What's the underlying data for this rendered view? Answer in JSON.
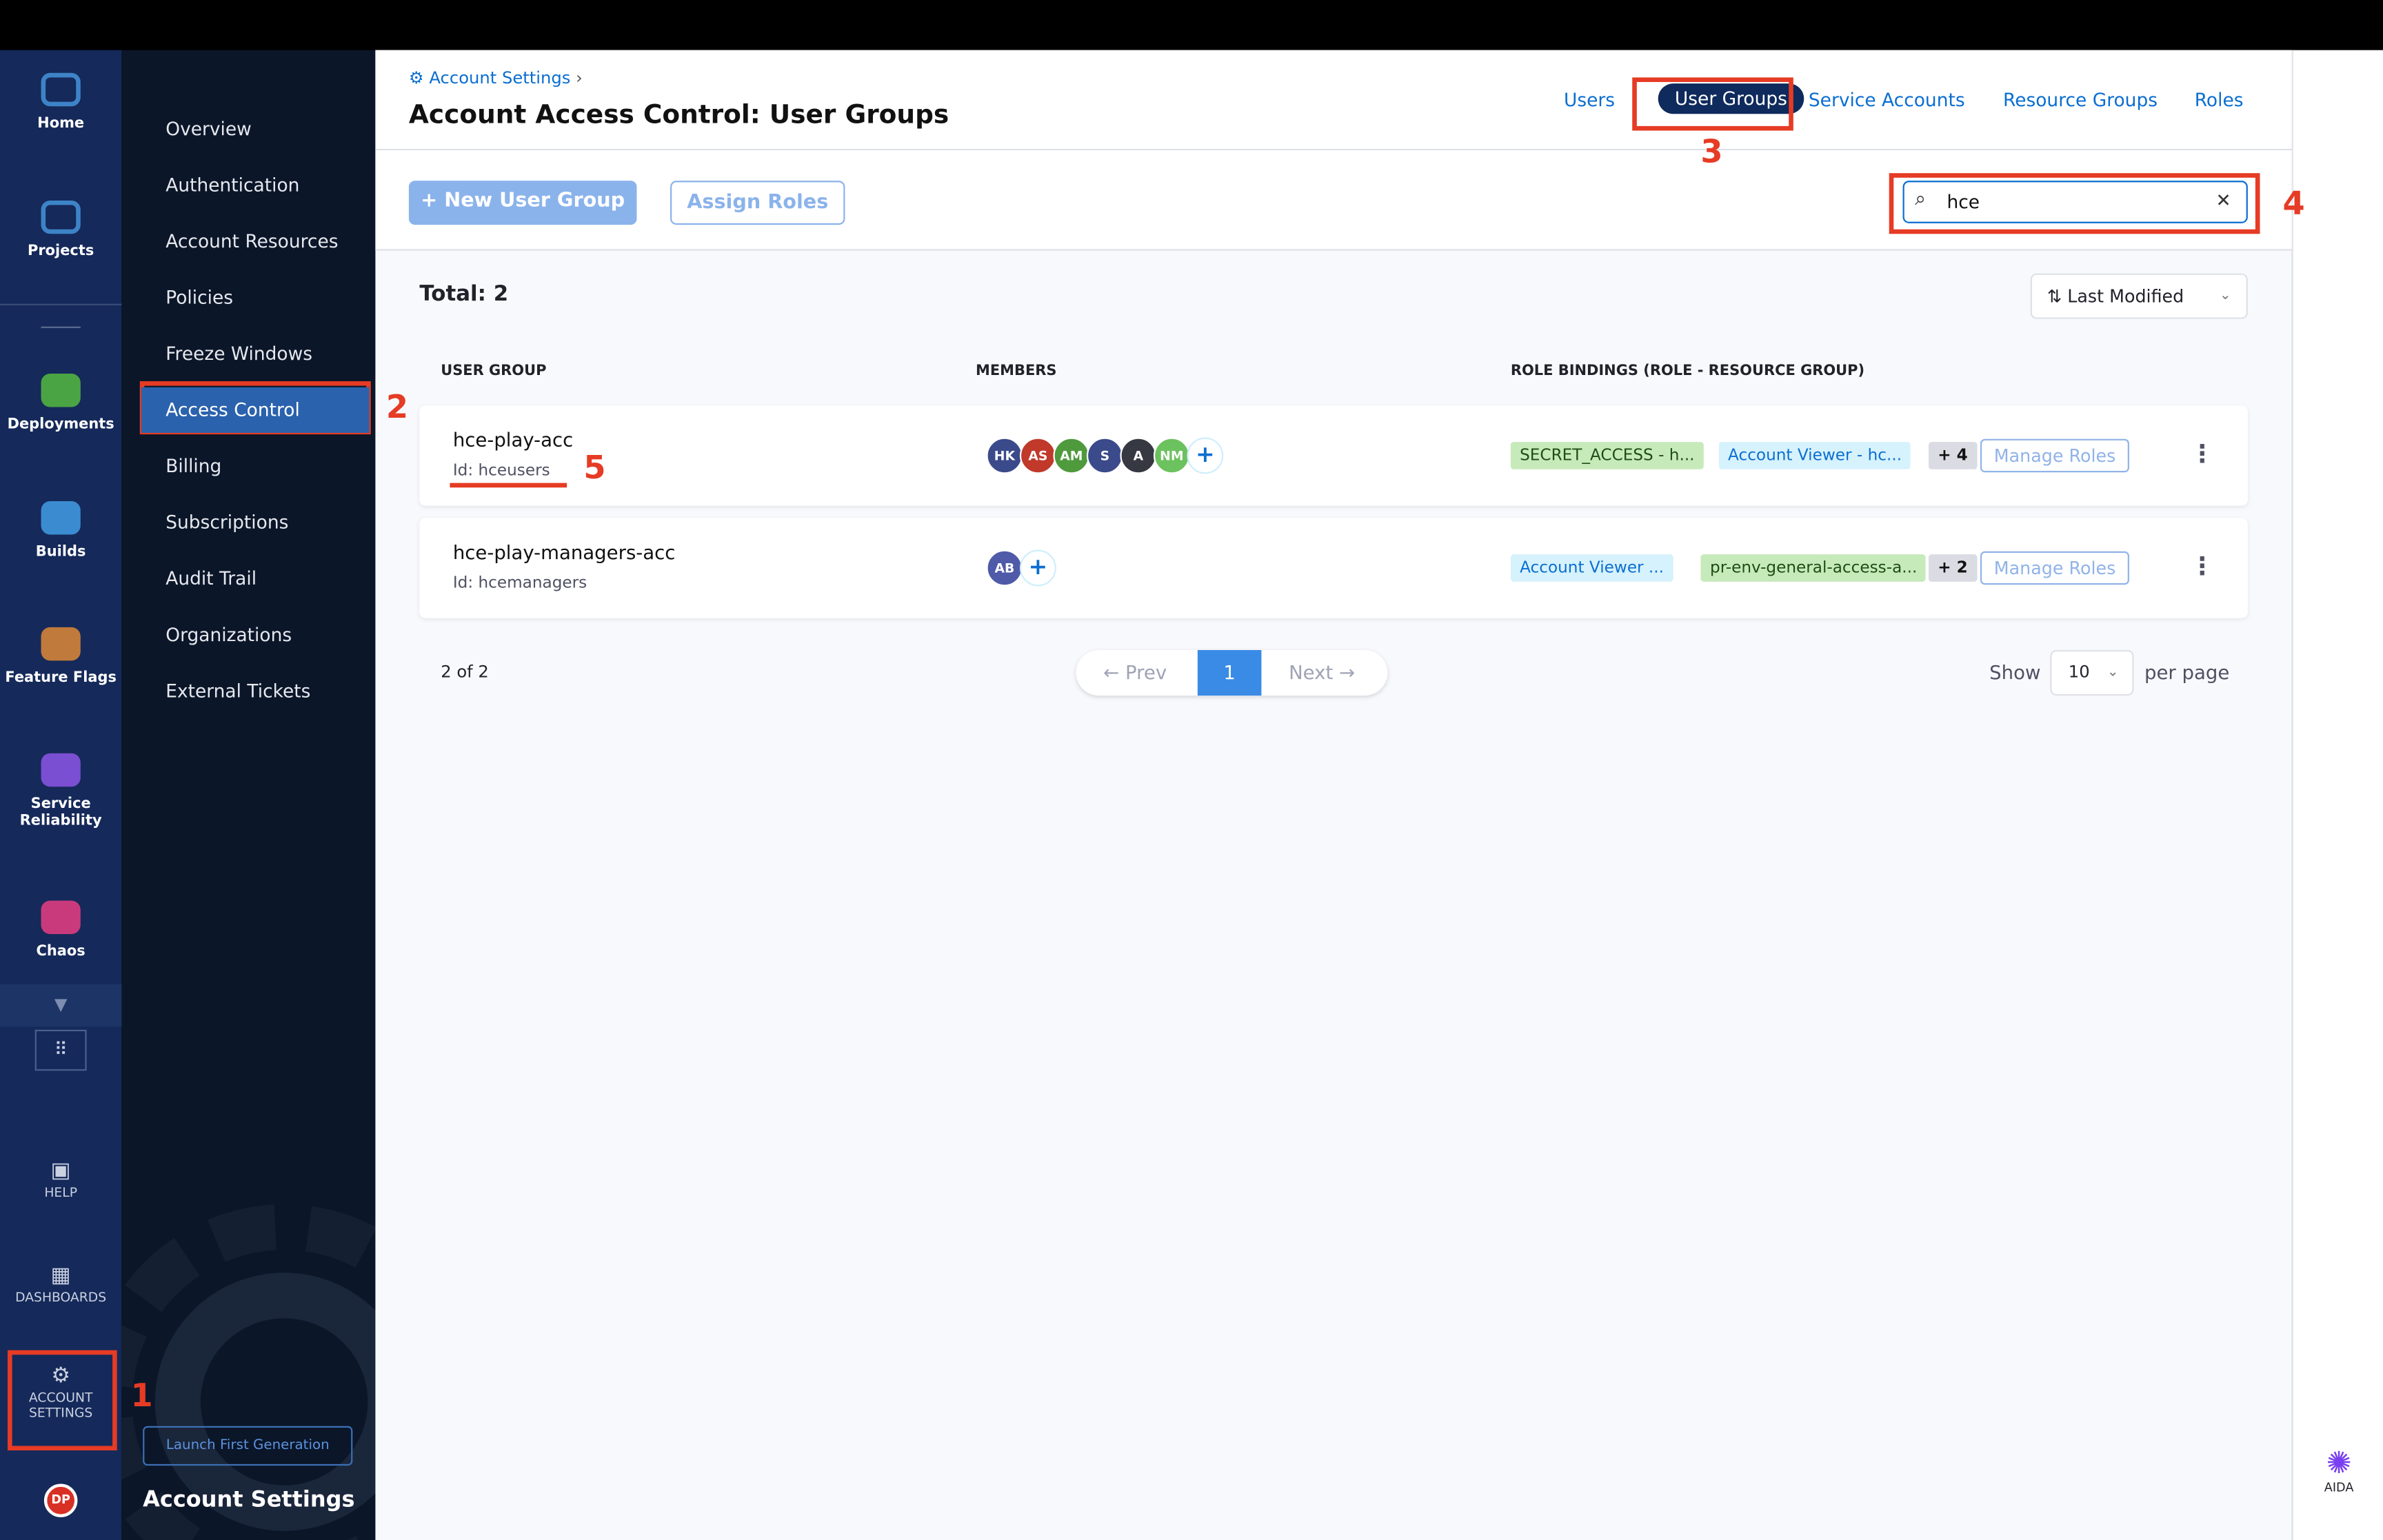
{
  "rail": {
    "items": [
      {
        "label": "Home",
        "icon": "home-icon",
        "color": "#3d83c7"
      },
      {
        "label": "Projects",
        "icon": "projects-cube-icon",
        "color": "#3d83c7"
      },
      {
        "label": "Deployments",
        "icon": "deployments-icon",
        "color": "#4aa444"
      },
      {
        "label": "Builds",
        "icon": "builds-icon",
        "color": "#3b8bd1"
      },
      {
        "label": "Feature Flags",
        "icon": "feature-flags-icon",
        "color": "#c07a3c"
      },
      {
        "label": "Service Reliability",
        "icon": "service-reliability-icon",
        "color": "#7a4fd1"
      },
      {
        "label": "Chaos",
        "icon": "chaos-icon",
        "color": "#c93a7c"
      }
    ],
    "help": "HELP",
    "dashboards": "DASHBOARDS",
    "account_settings": "ACCOUNT SETTINGS",
    "user_initials": "DP"
  },
  "subnav": {
    "items": [
      "Overview",
      "Authentication",
      "Account Resources",
      "Policies",
      "Freeze Windows",
      "Access Control",
      "Billing",
      "Subscriptions",
      "Audit Trail",
      "Organizations",
      "External Tickets"
    ],
    "active": "Access Control",
    "launch": "Launch First Generation",
    "footer_title": "Account Settings"
  },
  "header": {
    "breadcrumb": "Account Settings",
    "title": "Account Access Control: User Groups",
    "tabs": [
      "Users",
      "User Groups",
      "Service Accounts",
      "Resource Groups",
      "Roles"
    ],
    "active_tab": "User Groups"
  },
  "toolbar": {
    "new_group": "+ New User Group",
    "assign_roles": "Assign Roles",
    "search_value": "hce"
  },
  "list": {
    "total": "Total: 2",
    "sort": "Last Modified",
    "columns": [
      "USER GROUP",
      "MEMBERS",
      "ROLE BINDINGS (ROLE - RESOURCE GROUP)"
    ],
    "rows": [
      {
        "name": "hce-play-acc",
        "id": "Id: hceusers",
        "members": [
          {
            "i": "HK",
            "c": "#3b4a8a"
          },
          {
            "i": "AS",
            "c": "#c0392b"
          },
          {
            "i": "AM",
            "c": "#4e9a3d"
          },
          {
            "i": "S",
            "c": "#3b4a8a"
          },
          {
            "i": "A",
            "c": "#363842"
          },
          {
            "i": "NM",
            "c": "#6cc25e"
          }
        ],
        "bindings": [
          {
            "t": "SECRET_ACCESS - h...",
            "k": "green"
          },
          {
            "t": "Account Viewer - hc...",
            "k": "blue"
          }
        ],
        "more": "+ 4",
        "manage": "Manage Roles"
      },
      {
        "name": "hce-play-managers-acc",
        "id": "Id: hcemanagers",
        "members": [
          {
            "i": "AB",
            "c": "#4f5aa8"
          }
        ],
        "bindings": [
          {
            "t": "Account Viewer ...",
            "k": "blue"
          },
          {
            "t": "pr-env-general-access-a...",
            "k": "green"
          }
        ],
        "more": "+ 2",
        "manage": "Manage Roles"
      }
    ]
  },
  "pagination": {
    "summary": "2 of 2",
    "prev": "← Prev",
    "page": "1",
    "next": "Next →",
    "show": "Show",
    "page_size": "10",
    "per_page": "per page"
  },
  "aida": "AIDA",
  "annotations": [
    "1",
    "2",
    "3",
    "4",
    "5"
  ]
}
